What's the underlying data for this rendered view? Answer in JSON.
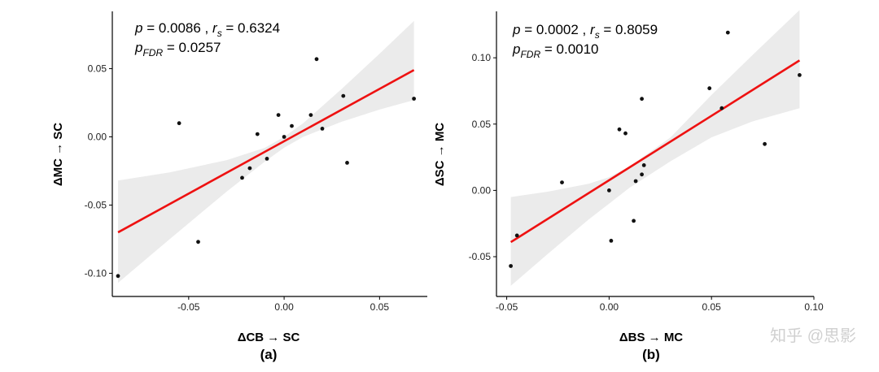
{
  "watermark": "知乎 @思影",
  "chart_data": [
    {
      "type": "scatter",
      "panel_label": "(a)",
      "xlabel": "ΔCB → SC",
      "ylabel": "ΔMC → SC",
      "xlim": [
        -0.09,
        0.075
      ],
      "ylim": [
        -0.117,
        0.092
      ],
      "xticks": [
        -0.05,
        0.0,
        0.05
      ],
      "xtick_labels": [
        "-0.05",
        "0.00",
        "0.05"
      ],
      "yticks": [
        -0.1,
        -0.05,
        0.0,
        0.05
      ],
      "ytick_labels": [
        "-0.10",
        "-0.05",
        "0.00",
        "0.05"
      ],
      "stats": {
        "p_sym": "p",
        "p_eq": " = 0.0086 ,  ",
        "r_sym": "r",
        "r_sub": "s",
        "r_eq": " = 0.6324",
        "pfdr_sym": "p",
        "pfdr_sub": "FDR",
        "pfdr_eq": " = 0.0257"
      },
      "fit": {
        "x": [
          -0.087,
          0.068
        ],
        "y": [
          -0.07,
          0.049
        ]
      },
      "band": {
        "x": [
          -0.087,
          -0.06,
          -0.03,
          -0.01,
          0.0,
          0.01,
          0.03,
          0.05,
          0.068
        ],
        "lower": [
          -0.107,
          -0.075,
          -0.04,
          -0.018,
          -0.008,
          0.0,
          0.011,
          0.02,
          0.027
        ],
        "upper": [
          -0.032,
          -0.026,
          -0.017,
          -0.008,
          0.0,
          0.01,
          0.035,
          0.061,
          0.085
        ]
      },
      "points": {
        "x": [
          -0.087,
          -0.055,
          -0.045,
          -0.022,
          -0.018,
          -0.014,
          -0.009,
          -0.003,
          0.0,
          0.004,
          0.014,
          0.017,
          0.02,
          0.031,
          0.033,
          0.068
        ],
        "y": [
          -0.102,
          0.01,
          -0.077,
          -0.03,
          -0.023,
          0.002,
          -0.016,
          0.016,
          0.0,
          0.008,
          0.016,
          0.057,
          0.006,
          0.03,
          -0.019,
          0.028
        ]
      }
    },
    {
      "type": "scatter",
      "panel_label": "(b)",
      "xlabel": "ΔBS → MC",
      "ylabel": "ΔSC → MC",
      "xlim": [
        -0.055,
        0.1
      ],
      "ylim": [
        -0.08,
        0.135
      ],
      "xticks": [
        -0.05,
        0.0,
        0.05,
        0.1
      ],
      "xtick_labels": [
        "-0.05",
        "0.00",
        "0.05",
        "0.10"
      ],
      "yticks": [
        -0.05,
        0.0,
        0.05,
        0.1
      ],
      "ytick_labels": [
        "-0.05",
        "0.00",
        "0.05",
        "0.10"
      ],
      "stats": {
        "p_sym": "p",
        "p_eq": " = 0.0002 ,  ",
        "r_sym": "r",
        "r_sub": "s",
        "r_eq": " = 0.8059",
        "pfdr_sym": "p",
        "pfdr_sub": "FDR",
        "pfdr_eq": " = 0.0010"
      },
      "fit": {
        "x": [
          -0.048,
          0.093
        ],
        "y": [
          -0.039,
          0.098
        ]
      },
      "band": {
        "x": [
          -0.048,
          -0.03,
          -0.01,
          0.0,
          0.01,
          0.03,
          0.05,
          0.07,
          0.093
        ],
        "lower": [
          -0.072,
          -0.048,
          -0.022,
          -0.01,
          0.002,
          0.022,
          0.04,
          0.052,
          0.062
        ],
        "upper": [
          -0.005,
          -0.001,
          0.005,
          0.01,
          0.018,
          0.04,
          0.072,
          0.102,
          0.136
        ]
      },
      "points": {
        "x": [
          -0.048,
          -0.045,
          -0.023,
          0.0,
          0.001,
          0.005,
          0.008,
          0.012,
          0.013,
          0.016,
          0.016,
          0.017,
          0.049,
          0.055,
          0.058,
          0.076,
          0.093
        ],
        "y": [
          -0.057,
          -0.034,
          0.006,
          0.0,
          -0.038,
          0.046,
          0.043,
          -0.023,
          0.007,
          0.069,
          0.012,
          0.019,
          0.077,
          0.062,
          0.119,
          0.035,
          0.087
        ]
      }
    }
  ]
}
